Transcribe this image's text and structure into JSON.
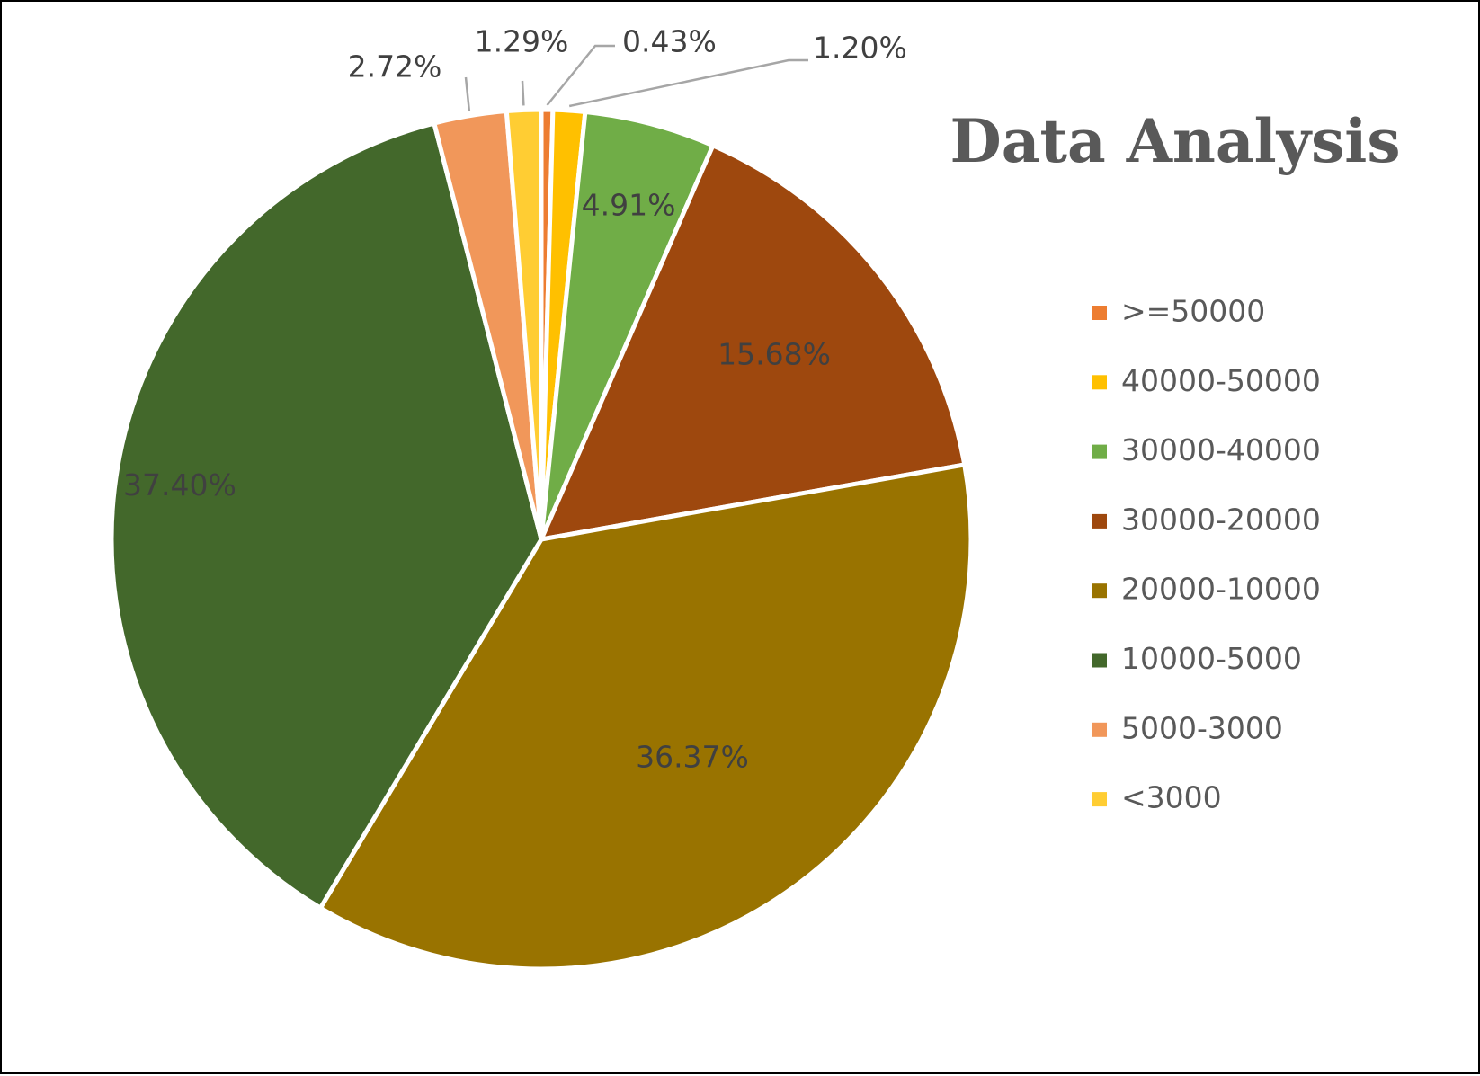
{
  "chart_data": {
    "type": "pie",
    "title": "Data Analysis",
    "legend_position": "right",
    "label_color": "#404040",
    "leader_line_color": "#a6a6a6",
    "slices": [
      {
        "name": ">=50000",
        "value": 0.43,
        "label": "0.43%",
        "color": "#ED7D31"
      },
      {
        "name": "40000-50000",
        "value": 1.2,
        "label": "1.20%",
        "color": "#FFC000"
      },
      {
        "name": "30000-40000",
        "value": 4.91,
        "label": "4.91%",
        "color": "#70AD47"
      },
      {
        "name": "30000-20000",
        "value": 15.68,
        "label": "15.68%",
        "color": "#9E480E"
      },
      {
        "name": "20000-10000",
        "value": 36.37,
        "label": "36.37%",
        "color": "#997300"
      },
      {
        "name": "10000-5000",
        "value": 37.4,
        "label": "37.40%",
        "color": "#43682B"
      },
      {
        "name": "5000-3000",
        "value": 2.72,
        "label": "2.72%",
        "color": "#F1975A"
      },
      {
        "name": "<3000",
        "value": 1.29,
        "label": "1.29%",
        "color": "#FFCD33"
      }
    ]
  }
}
